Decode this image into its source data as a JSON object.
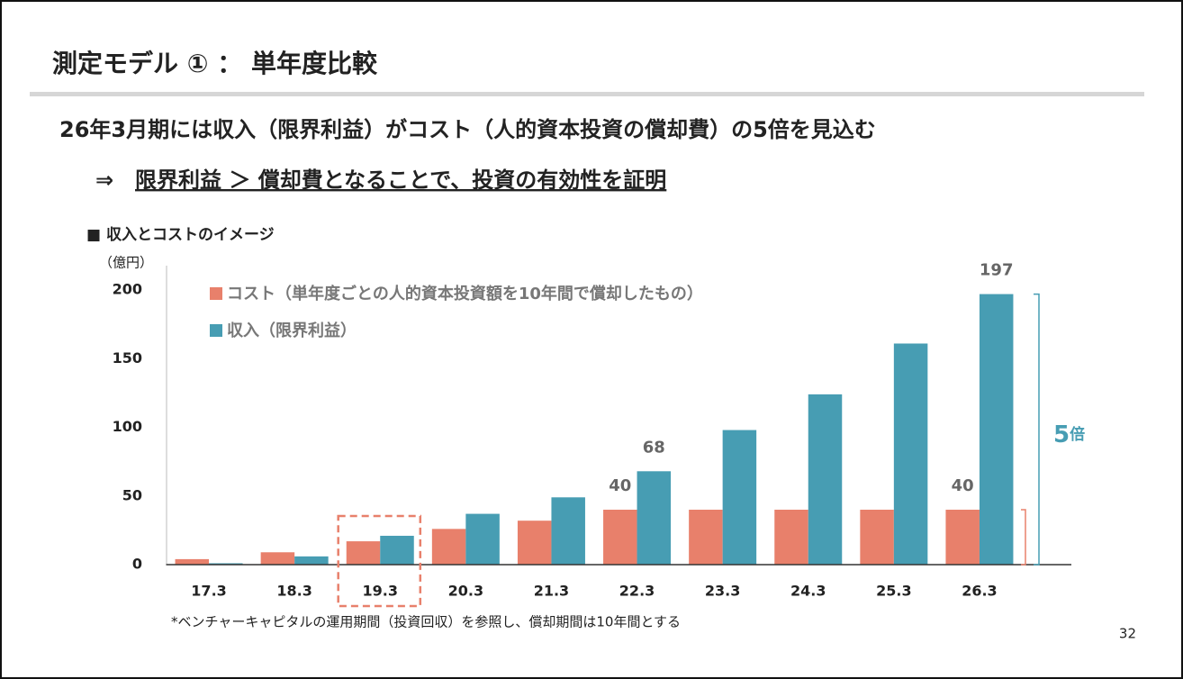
{
  "slide_title": "測定モデル ① ： 単年度比較",
  "headline": "26年3月期には収入（限界利益）がコスト（人的資本投資の償却費）の5倍を見込む",
  "subline": {
    "arrow": "⇒",
    "text": "限界利益 ＞ 償却費となることで、投資の有効性を証明"
  },
  "chart_data": {
    "type": "bar",
    "title": "■ 収入とコストのイメージ",
    "y_unit": "（億円）",
    "categories": [
      "17.3",
      "18.3",
      "19.3",
      "20.3",
      "21.3",
      "22.3",
      "23.3",
      "24.3",
      "25.3",
      "26.3"
    ],
    "series": [
      {
        "name": "コスト（単年度ごとの人的資本投資額を10年間で償却したもの）",
        "color": "#e8806b",
        "values": [
          4,
          9,
          17,
          26,
          32,
          40,
          40,
          40,
          40,
          40
        ],
        "value_labels": [
          null,
          null,
          null,
          null,
          null,
          "40",
          null,
          null,
          null,
          "40"
        ]
      },
      {
        "name": "収入（限界利益）",
        "color": "#479db3",
        "values": [
          1,
          6,
          21,
          37,
          49,
          68,
          98,
          124,
          161,
          197
        ],
        "value_labels": [
          null,
          null,
          null,
          null,
          null,
          "68",
          null,
          null,
          null,
          "197"
        ]
      }
    ],
    "ylim": [
      0,
      200
    ],
    "yticks": [
      0,
      50,
      100,
      150,
      200
    ],
    "highlight": 2,
    "annotation": {
      "text": "5",
      "suffix": "倍"
    },
    "footnote": "*ベンチャーキャピタルの運用期間（投資回収）を参照し、償却期間は10年間とする"
  },
  "page_number": "32"
}
